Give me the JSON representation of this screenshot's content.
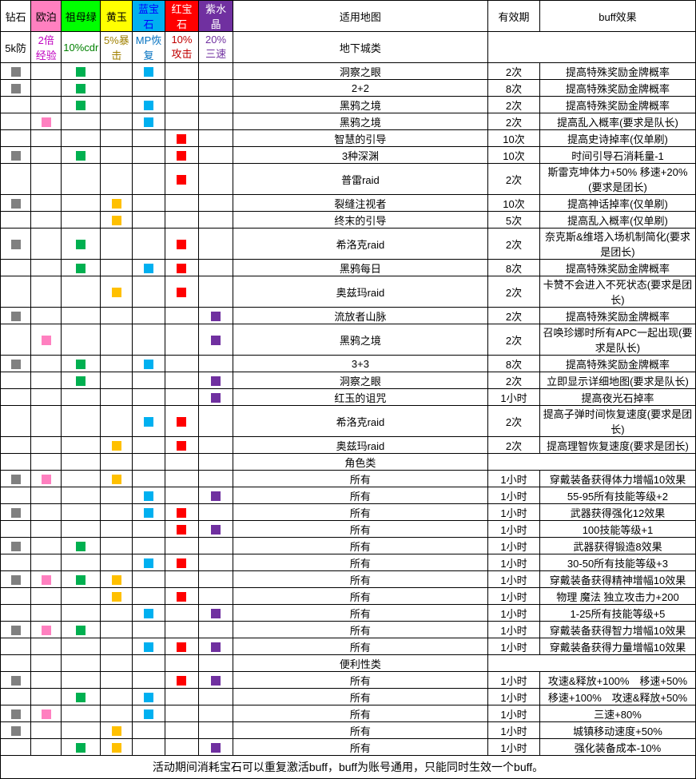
{
  "headers": {
    "gems": [
      {
        "name": "钻石",
        "effect": "5k防",
        "cls": "h-diamond",
        "eff_cls": ""
      },
      {
        "name": "欧泊",
        "effect": "2倍经验",
        "cls": "h-opal",
        "eff_cls": "opal-txt"
      },
      {
        "name": "祖母绿",
        "effect": "10%cdr",
        "cls": "h-emerald",
        "eff_cls": "emerald-txt"
      },
      {
        "name": "黄玉",
        "effect": "5%暴击",
        "cls": "h-topaz",
        "eff_cls": "topaz-txt"
      },
      {
        "name": "蓝宝石",
        "effect": "MP恢复",
        "cls": "h-sapphire",
        "eff_cls": "sapphire-txt"
      },
      {
        "name": "红宝石",
        "effect": "10%攻击",
        "cls": "h-ruby",
        "eff_cls": "ruby-txt"
      },
      {
        "name": "紫水晶",
        "effect": "20%三速",
        "cls": "h-amethyst",
        "eff_cls": "amethyst-txt"
      }
    ],
    "map": "适用地图",
    "duration": "有效期",
    "buff": "buff效果"
  },
  "sections": [
    {
      "title": "地下城类",
      "rows": [
        {
          "gems": [
            "d",
            "",
            "e",
            "",
            "s",
            "",
            ""
          ],
          "map": "洞察之眼",
          "duration": "2次",
          "buff": "提高特殊奖励金牌概率"
        },
        {
          "gems": [
            "d",
            "",
            "e",
            "",
            "",
            "",
            ""
          ],
          "map": "2+2",
          "duration": "8次",
          "buff": "提高特殊奖励金牌概率"
        },
        {
          "gems": [
            "",
            "",
            "e",
            "",
            "s",
            "",
            ""
          ],
          "map": "黑鸦之境",
          "duration": "2次",
          "buff": "提高特殊奖励金牌概率"
        },
        {
          "gems": [
            "",
            "o",
            "",
            "",
            "s",
            "",
            ""
          ],
          "map": "黑鸦之境",
          "duration": "2次",
          "buff": "提高乱入概率(要求是队长)"
        },
        {
          "gems": [
            "",
            "",
            "",
            "",
            "",
            "r",
            ""
          ],
          "map": "智慧的引导",
          "duration": "10次",
          "buff": "提高史诗掉率(仅单刷)"
        },
        {
          "gems": [
            "d",
            "",
            "e",
            "",
            "",
            "r",
            ""
          ],
          "map": "3种深渊",
          "duration": "10次",
          "buff": "时间引导石消耗量-1"
        },
        {
          "gems": [
            "",
            "",
            "",
            "",
            "",
            "r",
            ""
          ],
          "map": "普雷raid",
          "duration": "2次",
          "buff": "斯雷克坤体力+50% 移速+20%(要求是团长)"
        },
        {
          "gems": [
            "d",
            "",
            "",
            "t",
            "",
            "",
            ""
          ],
          "map": "裂缝注视者",
          "duration": "10次",
          "buff": "提高神话掉率(仅单刷)"
        },
        {
          "gems": [
            "",
            "",
            "",
            "t",
            "",
            "",
            ""
          ],
          "map": "终末的引导",
          "duration": "5次",
          "buff": "提高乱入概率(仅单刷)"
        },
        {
          "gems": [
            "d",
            "",
            "e",
            "",
            "",
            "r",
            ""
          ],
          "map": "希洛克raid",
          "duration": "2次",
          "buff": "奈克斯&维塔入场机制简化(要求是团长)"
        },
        {
          "gems": [
            "",
            "",
            "e",
            "",
            "s",
            "r",
            ""
          ],
          "map": "黑鸦每日",
          "duration": "8次",
          "buff": "提高特殊奖励金牌概率"
        },
        {
          "gems": [
            "",
            "",
            "",
            "t",
            "",
            "r",
            ""
          ],
          "map": "奥兹玛raid",
          "duration": "2次",
          "buff": "卡赞不会进入不死状态(要求是团长)"
        },
        {
          "gems": [
            "d",
            "",
            "",
            "",
            "",
            "",
            "a"
          ],
          "map": "流放者山脉",
          "duration": "2次",
          "buff": "提高特殊奖励金牌概率"
        },
        {
          "gems": [
            "",
            "o",
            "",
            "",
            "",
            "",
            "a"
          ],
          "map": "黑鸦之境",
          "duration": "2次",
          "buff": "召唤珍娜时所有APC一起出现(要求是队长)"
        },
        {
          "gems": [
            "d",
            "",
            "e",
            "",
            "s",
            "",
            ""
          ],
          "map": "3+3",
          "duration": "8次",
          "buff": "提高特殊奖励金牌概率"
        },
        {
          "gems": [
            "",
            "",
            "e",
            "",
            "",
            "",
            "a"
          ],
          "map": "洞察之眼",
          "duration": "2次",
          "buff": "立即显示详细地图(要求是队长)"
        },
        {
          "gems": [
            "",
            "",
            "",
            "",
            "",
            "",
            "a"
          ],
          "map": "红玉的诅咒",
          "duration": "1小时",
          "buff": "提高夜光石掉率"
        },
        {
          "gems": [
            "",
            "",
            "",
            "",
            "s",
            "r",
            ""
          ],
          "map": "希洛克raid",
          "duration": "2次",
          "buff": "提高子弹时间恢复速度(要求是团长)"
        },
        {
          "gems": [
            "",
            "",
            "",
            "t",
            "",
            "r",
            ""
          ],
          "map": "奥兹玛raid",
          "duration": "2次",
          "buff": "提高理智恢复速度(要求是团长)"
        }
      ]
    },
    {
      "title": "角色类",
      "rows": [
        {
          "gems": [
            "d",
            "o",
            "",
            "t",
            "",
            "",
            ""
          ],
          "map": "所有",
          "duration": "1小时",
          "buff": "穿戴装备获得体力增幅10效果"
        },
        {
          "gems": [
            "",
            "",
            "",
            "",
            "s",
            "",
            "a"
          ],
          "map": "所有",
          "duration": "1小时",
          "buff": "55-95所有技能等级+2"
        },
        {
          "gems": [
            "d",
            "",
            "",
            "",
            "s",
            "r",
            ""
          ],
          "map": "所有",
          "duration": "1小时",
          "buff": "武器获得强化12效果"
        },
        {
          "gems": [
            "",
            "",
            "",
            "",
            "",
            "r",
            "a"
          ],
          "map": "所有",
          "duration": "1小时",
          "buff": "100技能等级+1"
        },
        {
          "gems": [
            "d",
            "",
            "e",
            "",
            "",
            "",
            ""
          ],
          "map": "所有",
          "duration": "1小时",
          "buff": "武器获得锻造8效果"
        },
        {
          "gems": [
            "",
            "",
            "",
            "",
            "s",
            "r",
            ""
          ],
          "map": "所有",
          "duration": "1小时",
          "buff": "30-50所有技能等级+3"
        },
        {
          "gems": [
            "d",
            "o",
            "e",
            "t",
            "",
            "",
            ""
          ],
          "map": "所有",
          "duration": "1小时",
          "buff": "穿戴装备获得精神增幅10效果"
        },
        {
          "gems": [
            "",
            "",
            "",
            "t",
            "",
            "r",
            ""
          ],
          "map": "所有",
          "duration": "1小时",
          "buff": "物理 魔法 独立攻击力+200"
        },
        {
          "gems": [
            "",
            "",
            "",
            "",
            "s",
            "",
            "a"
          ],
          "map": "所有",
          "duration": "1小时",
          "buff": "1-25所有技能等级+5"
        },
        {
          "gems": [
            "d",
            "o",
            "e",
            "",
            "",
            "",
            ""
          ],
          "map": "所有",
          "duration": "1小时",
          "buff": "穿戴装备获得智力增幅10效果"
        },
        {
          "gems": [
            "",
            "",
            "",
            "",
            "s",
            "r",
            "a"
          ],
          "map": "所有",
          "duration": "1小时",
          "buff": "穿戴装备获得力量增幅10效果"
        }
      ]
    },
    {
      "title": "便利性类",
      "rows": [
        {
          "gems": [
            "d",
            "",
            "",
            "",
            "",
            "r",
            "a"
          ],
          "map": "所有",
          "duration": "1小时",
          "buff": "攻速&释放+100%　移速+50%"
        },
        {
          "gems": [
            "",
            "",
            "e",
            "",
            "s",
            "",
            ""
          ],
          "map": "所有",
          "duration": "1小时",
          "buff": "移速+100%　攻速&释放+50%"
        },
        {
          "gems": [
            "d",
            "o",
            "",
            "",
            "s",
            "",
            ""
          ],
          "map": "所有",
          "duration": "1小时",
          "buff": "三速+80%"
        },
        {
          "gems": [
            "d",
            "",
            "",
            "t",
            "",
            "",
            ""
          ],
          "map": "所有",
          "duration": "1小时",
          "buff": "城镇移动速度+50%"
        },
        {
          "gems": [
            "",
            "",
            "e",
            "t",
            "",
            "",
            "a"
          ],
          "map": "所有",
          "duration": "1小时",
          "buff": "强化装备成本-10%"
        }
      ]
    }
  ],
  "footer": "活动期间消耗宝石可以重复激活buff，buff为账号通用，只能同时生效一个buff。",
  "gem_class_map": {
    "d": "g-d",
    "o": "g-o",
    "e": "g-e",
    "t": "g-t",
    "s": "g-s",
    "r": "g-r",
    "a": "g-a"
  }
}
